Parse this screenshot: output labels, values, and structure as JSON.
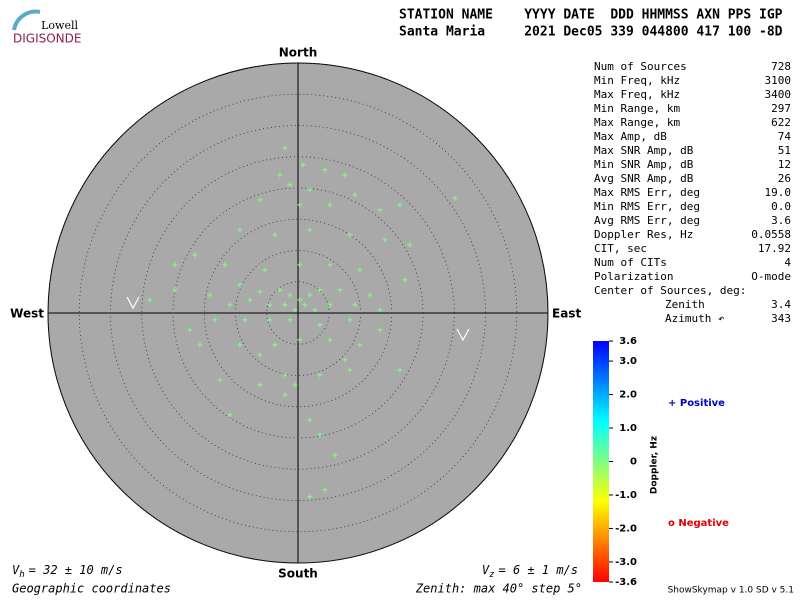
{
  "logo": {
    "top": "Lowell",
    "main": "DIGISONDE"
  },
  "header": {
    "columns": "STATION NAME    YYYY DATE  DDD HHMMSS AXN PPS IGP",
    "values": "Santa Maria     2021 Dec05 339 044800 417 100 -8D"
  },
  "stats": [
    [
      "Num of Sources",
      "728"
    ],
    [
      "Min Freq, kHz",
      "3100"
    ],
    [
      "Max Freq, kHz",
      "3400"
    ],
    [
      "Min Range, km",
      "297"
    ],
    [
      "Max Range, km",
      "622"
    ],
    [
      "Max Amp, dB",
      "74"
    ],
    [
      "Max SNR Amp, dB",
      "51"
    ],
    [
      "Min SNR Amp, dB",
      "12"
    ],
    [
      "Avg SNR Amp, dB",
      "26"
    ],
    [
      "Max RMS Err, deg",
      "19.0"
    ],
    [
      "Min RMS Err, deg",
      "0.0"
    ],
    [
      "Avg RMS Err, deg",
      "3.6"
    ],
    [
      "Doppler Res, Hz",
      "0.0558"
    ],
    [
      "CIT, sec",
      "17.92"
    ],
    [
      "Num of CITs",
      "4"
    ],
    [
      "Polarization",
      "O-mode"
    ]
  ],
  "center_of_sources": {
    "title": "Center of Sources, deg:",
    "rows": [
      [
        "Zenith",
        "3.4"
      ],
      [
        "Azimuth ↶",
        "343"
      ]
    ]
  },
  "footer": {
    "vh": {
      "symbol": "V",
      "sub": "h",
      "text": "= 32 ± 10 m/s"
    },
    "vz": {
      "symbol": "V",
      "sub": "z",
      "text": "= 6 ± 1 m/s"
    },
    "coordinates": "Geographic coordinates",
    "zenith": "Zenith: max 40°  step 5°",
    "version": "ShowSkymap v 1.0  SD v 5.1"
  },
  "chart_data": {
    "type": "scatter",
    "directions": {
      "north": "North",
      "south": "South",
      "west": "West",
      "east": "East"
    },
    "color": "#80ff80",
    "xlim": [
      -40,
      40
    ],
    "ylim": [
      -40,
      40
    ],
    "rings": [
      5,
      10,
      15,
      20,
      25,
      30,
      35,
      40
    ],
    "x": [
      -2.1,
      0.8,
      -2.9,
      4.3,
      7.5,
      -1.3,
      1.9,
      9.1,
      -6.1,
      0.3,
      5.1,
      13.1,
      16.3,
      25.1,
      -9.3,
      -3.7,
      1.9,
      8.3,
      13.9,
      17.9,
      -16.5,
      -11.7,
      -5.3,
      0.3,
      5.1,
      9.9,
      -19.7,
      -23.7,
      -14.1,
      -9.3,
      -6.1,
      -2.9,
      -1.3,
      0.3,
      1.9,
      3.5,
      6.7,
      11.5,
      -10.9,
      -7.7,
      -4.5,
      -2.1,
      -0.5,
      1.1,
      2.7,
      5.1,
      9.1,
      13.1,
      -17.3,
      -13.3,
      -8.5,
      -4.5,
      -1.3,
      3.5,
      8.3,
      -15.7,
      -9.3,
      -3.7,
      0.3,
      5.1,
      9.9,
      -12.5,
      -6.1,
      -2.1,
      -0.5,
      3.5,
      8.3,
      16.3,
      -10.9,
      -2.1,
      1.9,
      3.5,
      5.9,
      1.9,
      4.3,
      -6.1,
      7.5,
      13.1,
      17.1,
      -19.7
    ],
    "y": [
      26.4,
      23.7,
      22.1,
      22.9,
      22.1,
      20.5,
      19.7,
      18.9,
      18.1,
      17.3,
      17.3,
      16.5,
      17.3,
      18.4,
      13.3,
      12.5,
      13.3,
      12.5,
      11.7,
      10.9,
      9.3,
      7.7,
      6.9,
      7.7,
      7.7,
      6.9,
      3.7,
      2.1,
      2.9,
      4.5,
      3.4,
      3.7,
      2.9,
      2.1,
      2.9,
      3.7,
      3.7,
      2.9,
      1.3,
      2.1,
      1.3,
      1.3,
      0.5,
      1.3,
      0.5,
      1.3,
      1.3,
      0.5,
      -2.7,
      -1.1,
      -1.1,
      -1.1,
      -1.1,
      -1.9,
      -1.1,
      -5.1,
      -5.1,
      -5.1,
      -4.3,
      -4.3,
      -5.1,
      -10.7,
      -11.5,
      -9.9,
      -11.5,
      -9.9,
      -9.1,
      -9.1,
      -16.3,
      -13.1,
      -17.1,
      -19.5,
      -22.7,
      -29.4,
      -28.3,
      -6.7,
      -7.5,
      -2.7,
      5.3,
      7.7
    ],
    "colorbar": {
      "label": "Doppler, Hz",
      "lim": [
        -3.6,
        3.6
      ],
      "colors": [
        "#ff0000",
        "#ff8000",
        "#ffff00",
        "#80ff80",
        "#00ffff",
        "#0080ff",
        "#0000ff"
      ],
      "ticks": [
        3.6,
        {
          "value": 3,
          "label": "3.0"
        },
        {
          "value": 2,
          "label": "2.0"
        },
        {
          "value": 1,
          "label": "1.0"
        },
        0,
        {
          "value": -1,
          "label": "-1.0"
        },
        {
          "value": -2,
          "label": "-2.0"
        },
        {
          "value": -3,
          "label": "-3.0"
        },
        -3.6
      ]
    },
    "legend": {
      "positive": "+ Positive",
      "positive_color": "#0000c0",
      "negative": "o Negative",
      "negative_color": "#e00000"
    }
  }
}
